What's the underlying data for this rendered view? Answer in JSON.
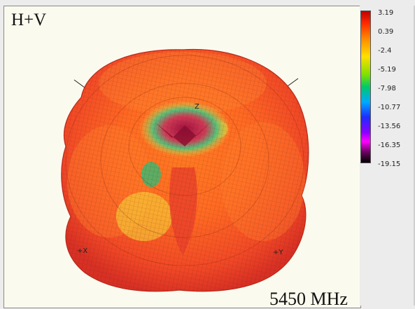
{
  "plot": {
    "title": "H+V",
    "frequency": "5450 MHz",
    "axes": {
      "z": "Z",
      "x": "+X",
      "y": "+Y"
    }
  },
  "colorscale": {
    "ticks": [
      "3.19",
      "0.39",
      "-2.4",
      "-5.19",
      "-7.98",
      "-10.77",
      "-13.56",
      "-16.35",
      "-19.15"
    ],
    "gradient": [
      "#c00000",
      "#ff2a00",
      "#ff8800",
      "#ffe000",
      "#7ee000",
      "#00c96b",
      "#00aaff",
      "#1e2cff",
      "#8a00ff",
      "#ff00ff",
      "#6a0060",
      "#000000"
    ]
  }
}
